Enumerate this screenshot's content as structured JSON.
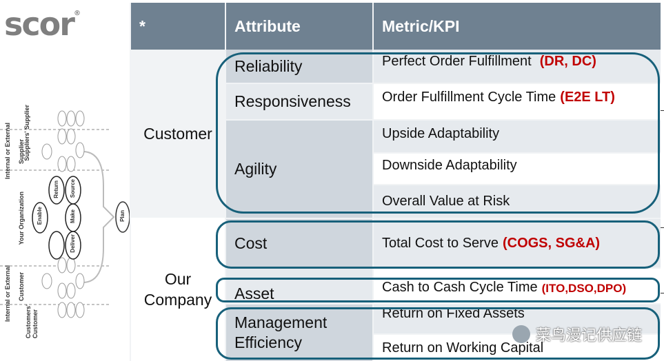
{
  "logo": {
    "text": "scor",
    "mark": "®"
  },
  "header": {
    "col1": "*",
    "col2": "Attribute",
    "col3": "Metric/KPI"
  },
  "categories": {
    "customer": "Customer",
    "our_company_line1": "Our",
    "our_company_line2": "Company"
  },
  "rows": [
    {
      "attribute": "Reliability",
      "metric": "Perfect Order Fulfillment",
      "tag": "(DR, DC)"
    },
    {
      "attribute": "Responsiveness",
      "metric": "Order Fulfillment Cycle Time",
      "tag": "(E2E LT)"
    },
    {
      "attribute": "Agility",
      "metric": "Upside Adaptability",
      "tag": ""
    },
    {
      "attribute": "",
      "metric": "Downside Adaptability",
      "tag": ""
    },
    {
      "attribute": "",
      "metric": "Overall Value at Risk",
      "tag": ""
    },
    {
      "attribute": "Cost",
      "metric": "Total Cost to Serve",
      "tag": "(COGS, SG&A)"
    },
    {
      "attribute": "Asset",
      "metric": "Cash to Cash Cycle Time",
      "tag": "(ITO,DSO,DPO)"
    },
    {
      "attribute_line1": "Management",
      "attribute_line2": "Efficiency",
      "metric": "Return on Fixed Assets",
      "tag": ""
    },
    {
      "attribute": "",
      "metric": "Return on Working Capital",
      "tag": ""
    }
  ],
  "diagram": {
    "labels": {
      "suppliers_supplier": "Suppliers' Supplier",
      "supplier": "Supplier",
      "internal_external_top": "Internal or External",
      "your_org": "Your Organization",
      "customer": "Customer",
      "internal_external_bottom": "Internal or External",
      "customers_customer": "Customers' Customer"
    },
    "processes": {
      "plan": "Plan",
      "source": "Source",
      "make": "Make",
      "deliver": "Deliver",
      "return": "Return",
      "enable": "Enable"
    }
  },
  "watermark": "菜鸟漫记供应链",
  "colors": {
    "header": "#6f8191",
    "row_dark": "#cfd6dd",
    "row_light": "#e6eaee",
    "outline": "#17607a",
    "accent_red": "#c00000"
  }
}
